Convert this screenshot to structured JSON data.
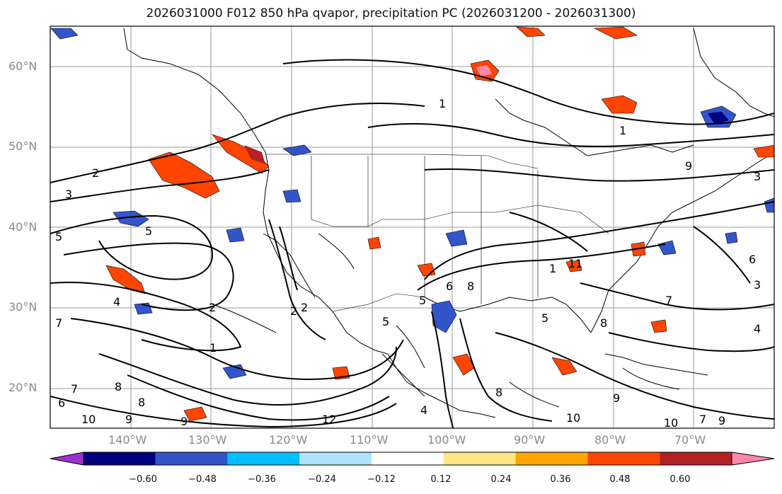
{
  "title": "2026031000 F012 850 hPa qvapor, precipitation PC (2026031200 - 2026031300)",
  "map": {
    "projection": "cylindrical",
    "lon_range": [
      -150,
      -60
    ],
    "lat_range": [
      15,
      65
    ],
    "lat_ticks": [
      "20°N",
      "30°N",
      "40°N",
      "50°N",
      "60°N"
    ],
    "lon_ticks": [
      "140°W",
      "130°W",
      "120°W",
      "110°W",
      "100°W",
      "90°W",
      "80°W",
      "70°W"
    ],
    "gridlines": true,
    "contour_color": "#000000",
    "contour_labels": [
      "1",
      "2",
      "3",
      "5",
      "5",
      "5",
      "4",
      "7",
      "2",
      "1",
      "6",
      "8",
      "10",
      "9",
      "8",
      "9",
      "7",
      "12",
      "1",
      "2",
      "3",
      "4",
      "5",
      "6",
      "7",
      "8",
      "9",
      "10",
      "11",
      "8",
      "9",
      "10",
      "6",
      "7",
      "5",
      "4",
      "3",
      "2",
      "1",
      "8",
      "9"
    ]
  },
  "colorbar": {
    "ticks": [
      "−0.60",
      "−0.48",
      "−0.36",
      "−0.24",
      "−0.12",
      "0.12",
      "0.24",
      "0.36",
      "0.48",
      "0.60"
    ],
    "colors": [
      "#9933cc",
      "#000080",
      "#3355cc",
      "#00bfff",
      "#aee0ff",
      "#ffffff",
      "#ffe680",
      "#ffa500",
      "#ff4500",
      "#b22222",
      "#ff88aa"
    ],
    "extend": "both"
  }
}
